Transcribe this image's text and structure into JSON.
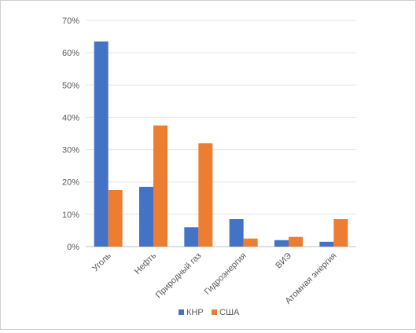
{
  "chart_data": {
    "type": "bar",
    "title": "",
    "xlabel": "",
    "ylabel": "",
    "ylim": [
      0,
      70
    ],
    "y_ticks": [
      "0%",
      "10%",
      "20%",
      "30%",
      "40%",
      "50%",
      "60%",
      "70%"
    ],
    "y_tick_values": [
      0,
      10,
      20,
      30,
      40,
      50,
      60,
      70
    ],
    "categories": [
      "Уголь",
      "Нефть",
      "Природный газ",
      "Гидроэнергия",
      "ВИЭ",
      "Атомная энергия"
    ],
    "series": [
      {
        "name": "КНР",
        "color": "#4472c4",
        "values": [
          63.5,
          18.5,
          6.0,
          8.5,
          2.0,
          1.5
        ]
      },
      {
        "name": "США",
        "color": "#ed7d31",
        "values": [
          17.5,
          37.5,
          32.0,
          2.5,
          3.0,
          8.5
        ]
      }
    ],
    "grid": true,
    "legend_position": "bottom-center"
  }
}
